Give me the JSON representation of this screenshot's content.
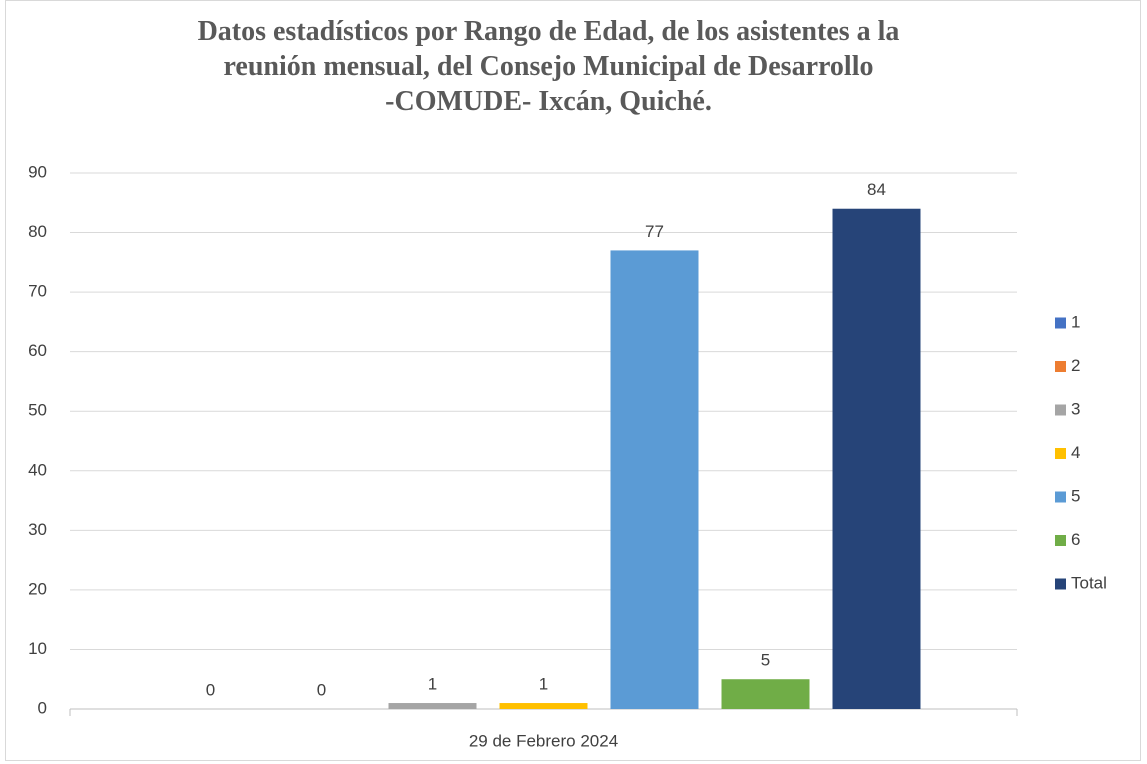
{
  "chart_data": {
    "type": "bar",
    "title": "Datos estadísticos por Rango de Edad, de los asistentes a la\nreunión mensual, del Consejo Municipal de Desarrollo\n-COMUDE- Ixcán, Quiché.",
    "categories": [
      "29 de Febrero 2024"
    ],
    "series": [
      {
        "name": "1",
        "color": "#4472c4",
        "values": [
          0
        ]
      },
      {
        "name": "2",
        "color": "#ed7d31",
        "values": [
          0
        ]
      },
      {
        "name": "3",
        "color": "#a5a5a5",
        "values": [
          1
        ]
      },
      {
        "name": "4",
        "color": "#ffc000",
        "values": [
          1
        ]
      },
      {
        "name": "5",
        "color": "#5b9bd5",
        "values": [
          77
        ]
      },
      {
        "name": "6",
        "color": "#70ad47",
        "values": [
          5
        ]
      },
      {
        "name": "Total",
        "color": "#264478",
        "values": [
          84
        ]
      }
    ],
    "ylim": [
      0,
      90
    ],
    "yticks": [
      0,
      10,
      20,
      30,
      40,
      50,
      60,
      70,
      80,
      90
    ],
    "grid": true,
    "legend": "right",
    "data_labels": true
  }
}
